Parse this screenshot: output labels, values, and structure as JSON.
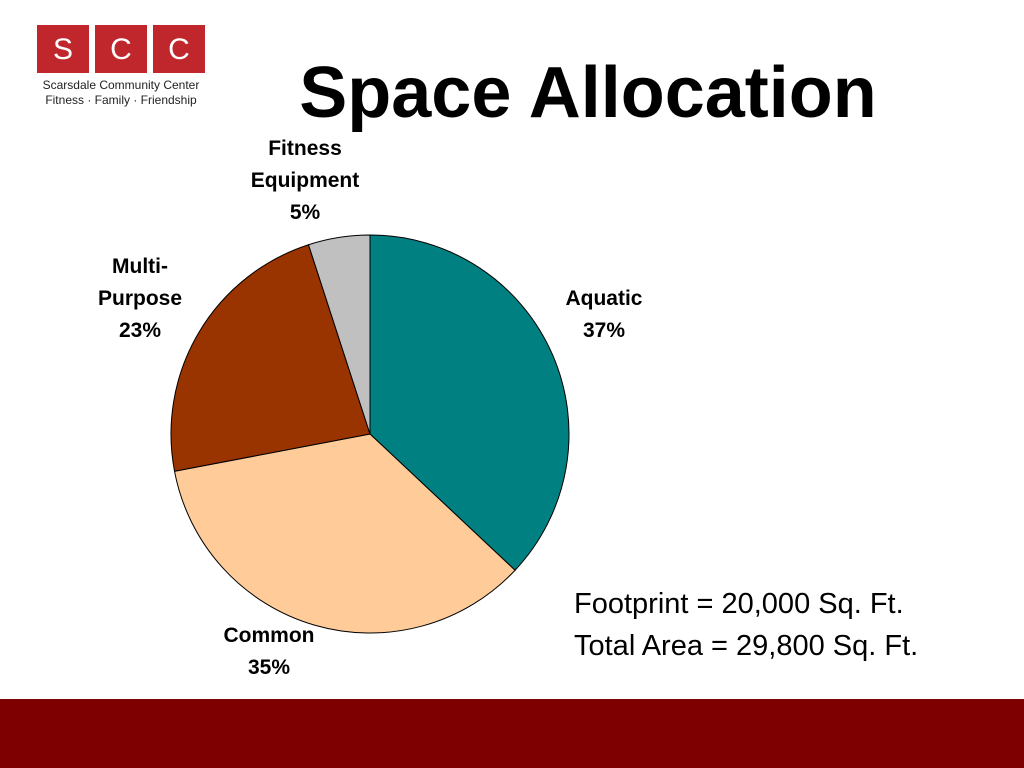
{
  "logo": {
    "letters": [
      "S",
      "C",
      "C"
    ],
    "name": "Scarsdale Community Center",
    "tagline": "Fitness · Family · Friendship"
  },
  "chart_data": {
    "type": "pie",
    "title": "Space Allocation",
    "categories": [
      "Aquatic",
      "Common",
      "Multi-Purpose",
      "Fitness Equipment"
    ],
    "values": [
      37,
      35,
      23,
      5
    ],
    "value_labels": [
      "37%",
      "35%",
      "23%",
      "5%"
    ],
    "colors": [
      "#008080",
      "#ffcc99",
      "#993300",
      "#c0c0c0"
    ],
    "annotations": [
      "Footprint = 20,000 Sq. Ft.",
      "Total Area = 29,800 Sq. Ft."
    ]
  }
}
